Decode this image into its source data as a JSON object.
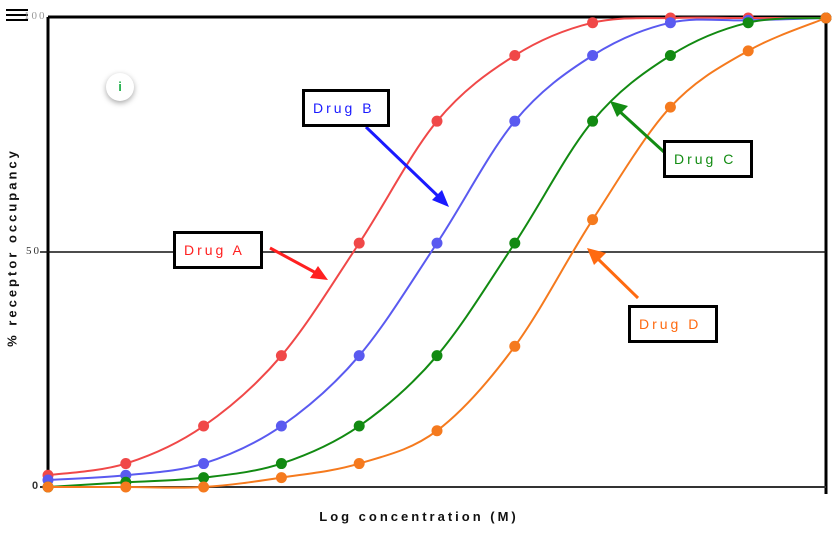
{
  "chart_data": {
    "type": "line",
    "title": "",
    "xlabel": "Log concentration (M)",
    "ylabel": "% receptor occupancy",
    "ylim": [
      0,
      100
    ],
    "yticks": [
      "0",
      "50",
      "100"
    ],
    "x": [
      0,
      1,
      2,
      3,
      4,
      5,
      6,
      7,
      8,
      9,
      10
    ],
    "grid": false,
    "reference_line": 50,
    "series": [
      {
        "name": "Drug A",
        "color": "#f04848",
        "values": [
          2.5,
          5,
          13,
          28,
          52,
          78,
          92,
          99,
          100,
          100,
          100
        ]
      },
      {
        "name": "Drug B",
        "color": "#5a5af0",
        "values": [
          1.5,
          2.5,
          5,
          13,
          28,
          52,
          78,
          92,
          99,
          99.5,
          100
        ]
      },
      {
        "name": "Drug C",
        "color": "#128a12",
        "values": [
          0,
          1,
          2,
          5,
          13,
          28,
          52,
          78,
          92,
          99,
          100
        ]
      },
      {
        "name": "Drug D",
        "color": "#f57a1e",
        "values": [
          0,
          0,
          0,
          2,
          5,
          12,
          30,
          57,
          81,
          93,
          100
        ]
      }
    ],
    "annotations": [
      {
        "text": "Drug A",
        "color": "#ff2020"
      },
      {
        "text": "Drug B",
        "color": "#1a1aff"
      },
      {
        "text": "Drug C",
        "color": "#138c13"
      },
      {
        "text": "Drug D",
        "color": "#ff6a10"
      }
    ]
  },
  "ui": {
    "menu_icon": "hamburger-menu-icon",
    "info_icon": "i"
  },
  "labels": {
    "ytick_0": "0",
    "ytick_50": "50",
    "ytick_100": "100",
    "xlabel": "Log concentration (M)",
    "ylabel": "% receptor occupancy",
    "drug_a": "Drug A",
    "drug_b": "Drug B",
    "drug_c": "Drug C",
    "drug_d": "Drug D"
  }
}
